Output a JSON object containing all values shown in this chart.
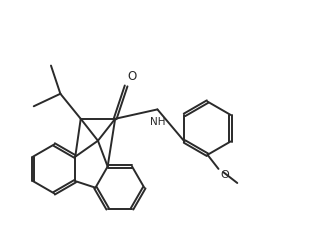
{
  "background_color": "#ffffff",
  "line_color": "#2a2a2a",
  "line_width": 1.4,
  "figsize": [
    3.18,
    2.47
  ],
  "dpi": 100,
  "xlim": [
    0,
    10
  ],
  "ylim": [
    0,
    7.8
  ]
}
